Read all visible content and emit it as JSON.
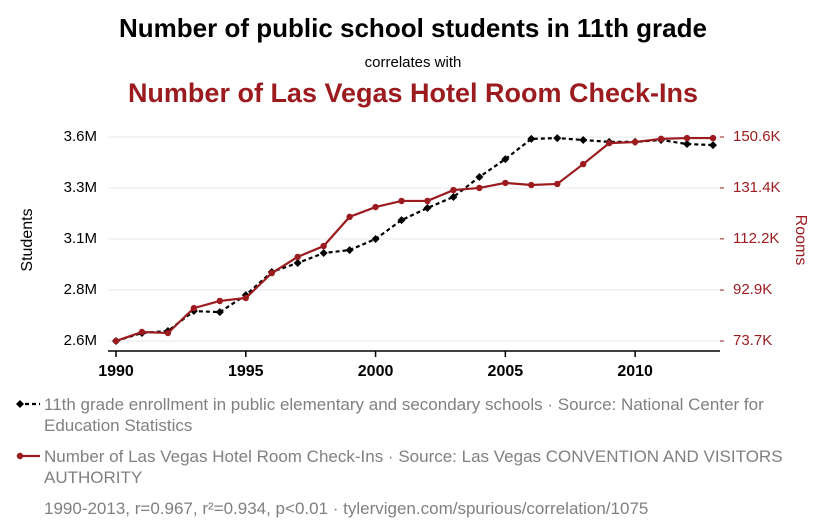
{
  "chart_data": {
    "type": "line",
    "title": "Number of public school students in 11th grade",
    "subtitle": "correlates with",
    "title2": "Number of Las Vegas Hotel Room Check-Ins",
    "ylabel": "Students",
    "y2label": "Rooms",
    "x": [
      1990,
      1991,
      1992,
      1993,
      1994,
      1995,
      1996,
      1997,
      1998,
      1999,
      2000,
      2001,
      2002,
      2003,
      2004,
      2005,
      2006,
      2007,
      2008,
      2009,
      2010,
      2011,
      2012,
      2013
    ],
    "xlim": [
      1990,
      2013
    ],
    "xticks": [
      1990,
      1995,
      2000,
      2005,
      2010
    ],
    "ylim": [
      2553000,
      3593000
    ],
    "yticks": [
      {
        "value": 2600000,
        "label": "2.6M"
      },
      {
        "value": 2840000,
        "label": "2.8M"
      },
      {
        "value": 3080000,
        "label": "3.1M"
      },
      {
        "value": 3320000,
        "label": "3.3M"
      },
      {
        "value": 3560000,
        "label": "3.6M"
      }
    ],
    "y2lim": [
      69930,
      153240
    ],
    "y2ticks": [
      {
        "value": 73700,
        "label": "73.7K"
      },
      {
        "value": 92900,
        "label": "92.9K"
      },
      {
        "value": 112200,
        "label": "112.2K"
      },
      {
        "value": 131400,
        "label": "131.4K"
      },
      {
        "value": 150600,
        "label": "150.6K"
      }
    ],
    "grid": true,
    "series": [
      {
        "name": "11th grade enrollment in public elementary and secondary schools · Source: National Center for Education Statistics",
        "color": "#000000",
        "dash": true,
        "marker": "diamond",
        "values": [
          2600000,
          2638000,
          2647000,
          2741000,
          2736000,
          2816000,
          2925000,
          2967000,
          3014000,
          3028000,
          3080000,
          3169000,
          3226000,
          3278000,
          3372000,
          3456000,
          3551000,
          3555000,
          3546000,
          3537000,
          3537000,
          3546000,
          3527000,
          3522000
        ]
      },
      {
        "name": "Number of Las Vegas Hotel Room Check-Ins · Source: Las Vegas CONVENTION AND VISITORS AUTHORITY",
        "color": "#9b1b1f",
        "dash": false,
        "marker": "circle",
        "axis": "y2",
        "values": [
          73700,
          77100,
          76700,
          86100,
          88800,
          89900,
          99300,
          105400,
          109500,
          120500,
          124200,
          126500,
          126500,
          130600,
          131400,
          133300,
          132500,
          132900,
          140400,
          148300,
          148700,
          149900,
          150200,
          150200
        ]
      }
    ],
    "note": "1990-2013, r=0.967, r²=0.934, p<0.01 · tylervigen.com/spurious/correlation/1075"
  }
}
